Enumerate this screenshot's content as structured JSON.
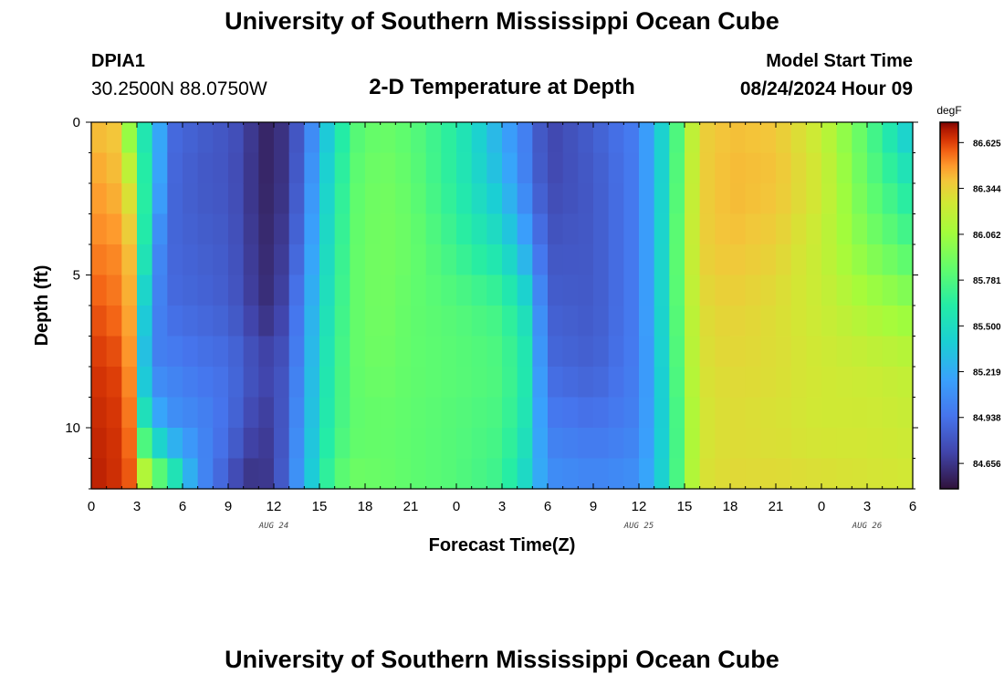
{
  "header": {
    "title": "University of Southern Mississippi Ocean Cube",
    "station": "DPIA1",
    "coordinates": "30.2500N  88.0750W",
    "subtitle": "2-D Temperature at Depth",
    "model_start_label": "Model Start Time",
    "model_start_value": "08/24/2024 Hour 09"
  },
  "footer": {
    "title": "University of Southern Mississippi Ocean Cube"
  },
  "chart_data": {
    "type": "heatmap",
    "title": "2-D Temperature at Depth",
    "xlabel": "Forecast Time(Z)",
    "ylabel": "Depth (ft)",
    "x_start_hour": 0,
    "x_end_hour": 54,
    "x_ticks": [
      {
        "hour": 0,
        "label": "0"
      },
      {
        "hour": 3,
        "label": "3"
      },
      {
        "hour": 6,
        "label": "6"
      },
      {
        "hour": 9,
        "label": "9"
      },
      {
        "hour": 12,
        "label": "12"
      },
      {
        "hour": 15,
        "label": "15"
      },
      {
        "hour": 18,
        "label": "18"
      },
      {
        "hour": 21,
        "label": "21"
      },
      {
        "hour": 24,
        "label": "0"
      },
      {
        "hour": 27,
        "label": "3"
      },
      {
        "hour": 30,
        "label": "6"
      },
      {
        "hour": 33,
        "label": "9"
      },
      {
        "hour": 36,
        "label": "12"
      },
      {
        "hour": 39,
        "label": "15"
      },
      {
        "hour": 42,
        "label": "18"
      },
      {
        "hour": 45,
        "label": "21"
      },
      {
        "hour": 48,
        "label": "0"
      },
      {
        "hour": 51,
        "label": "3"
      },
      {
        "hour": 54,
        "label": "6"
      }
    ],
    "date_labels": [
      {
        "hour": 12,
        "label": "AUG 24"
      },
      {
        "hour": 36,
        "label": "AUG 25"
      },
      {
        "hour": 51,
        "label": "AUG 26"
      }
    ],
    "y_range": [
      0,
      12
    ],
    "y_ticks": [
      {
        "value": 0,
        "label": "0"
      },
      {
        "value": 5,
        "label": "5"
      },
      {
        "value": 10,
        "label": "10"
      }
    ],
    "colorbar": {
      "units": "degF",
      "min": 84.5,
      "max": 86.75,
      "tick_labels": [
        "86.625",
        "86.344",
        "86.062",
        "85.781",
        "85.500",
        "85.219",
        "84.938",
        "84.656"
      ]
    },
    "key_hours": [
      0,
      1.5,
      2.5,
      3.5,
      4.5,
      5.5,
      7,
      9,
      10,
      11,
      12,
      13,
      14,
      15,
      16,
      17.5,
      19,
      21,
      24,
      27,
      28.5,
      30,
      33,
      36,
      37,
      38,
      39,
      40,
      42,
      45,
      48,
      51,
      54
    ],
    "profiles": [
      {
        "depth": 0,
        "values": [
          86.4,
          86.38,
          85.96,
          85.55,
          85.2,
          84.9,
          84.85,
          84.8,
          84.75,
          84.6,
          84.58,
          84.7,
          84.9,
          85.2,
          85.52,
          85.8,
          85.88,
          85.82,
          85.62,
          85.2,
          85.0,
          84.72,
          84.85,
          85.0,
          85.3,
          85.55,
          86.0,
          86.35,
          86.4,
          86.38,
          86.2,
          85.8,
          85.3
        ]
      },
      {
        "depth": 2,
        "values": [
          86.48,
          86.42,
          86.25,
          85.65,
          85.18,
          84.88,
          84.82,
          84.8,
          84.72,
          84.6,
          84.58,
          84.7,
          84.95,
          85.28,
          85.58,
          85.84,
          85.92,
          85.85,
          85.62,
          85.3,
          85.02,
          84.74,
          84.82,
          85.0,
          85.3,
          85.55,
          86.05,
          86.35,
          86.42,
          86.4,
          86.25,
          85.85,
          85.55
        ]
      },
      {
        "depth": 4,
        "values": [
          86.52,
          86.5,
          86.4,
          85.6,
          85.05,
          84.88,
          84.85,
          84.82,
          84.74,
          84.62,
          84.6,
          84.75,
          85.0,
          85.35,
          85.62,
          85.86,
          85.92,
          85.88,
          85.7,
          85.5,
          85.2,
          84.8,
          84.82,
          85.0,
          85.3,
          85.58,
          86.08,
          86.35,
          86.4,
          86.35,
          86.2,
          85.95,
          85.75
        ]
      },
      {
        "depth": 6,
        "values": [
          86.6,
          86.55,
          86.45,
          85.4,
          85.0,
          84.9,
          84.88,
          84.84,
          84.76,
          84.64,
          84.62,
          84.8,
          85.1,
          85.4,
          85.66,
          85.86,
          85.92,
          85.85,
          85.8,
          85.72,
          85.5,
          84.85,
          84.82,
          85.0,
          85.3,
          85.58,
          86.05,
          86.3,
          86.35,
          86.3,
          86.22,
          86.1,
          86.0
        ]
      },
      {
        "depth": 8,
        "values": [
          86.65,
          86.62,
          86.5,
          85.3,
          85.0,
          85.0,
          84.95,
          84.92,
          84.85,
          84.75,
          84.74,
          84.85,
          85.15,
          85.45,
          85.7,
          85.86,
          85.9,
          85.85,
          85.82,
          85.78,
          85.6,
          84.9,
          84.85,
          85.0,
          85.28,
          85.55,
          86.02,
          86.28,
          86.32,
          86.3,
          86.25,
          86.22,
          86.18
        ]
      },
      {
        "depth": 10,
        "values": [
          86.68,
          86.65,
          86.55,
          85.6,
          85.25,
          85.1,
          85.05,
          84.92,
          84.8,
          84.68,
          84.7,
          84.9,
          85.2,
          85.48,
          85.72,
          85.84,
          85.86,
          85.84,
          85.8,
          85.75,
          85.55,
          85.0,
          84.95,
          85.02,
          85.28,
          85.52,
          85.98,
          86.25,
          86.3,
          86.28,
          86.25,
          86.25,
          86.22
        ]
      },
      {
        "depth": 12,
        "values": [
          86.7,
          86.66,
          86.6,
          86.3,
          86.0,
          85.7,
          85.1,
          84.8,
          84.65,
          84.62,
          84.7,
          84.95,
          85.25,
          85.55,
          85.82,
          85.9,
          85.88,
          85.84,
          85.8,
          85.7,
          85.45,
          85.1,
          85.05,
          85.1,
          85.3,
          85.55,
          85.98,
          86.28,
          86.32,
          86.32,
          86.3,
          86.28,
          86.26
        ]
      }
    ]
  }
}
